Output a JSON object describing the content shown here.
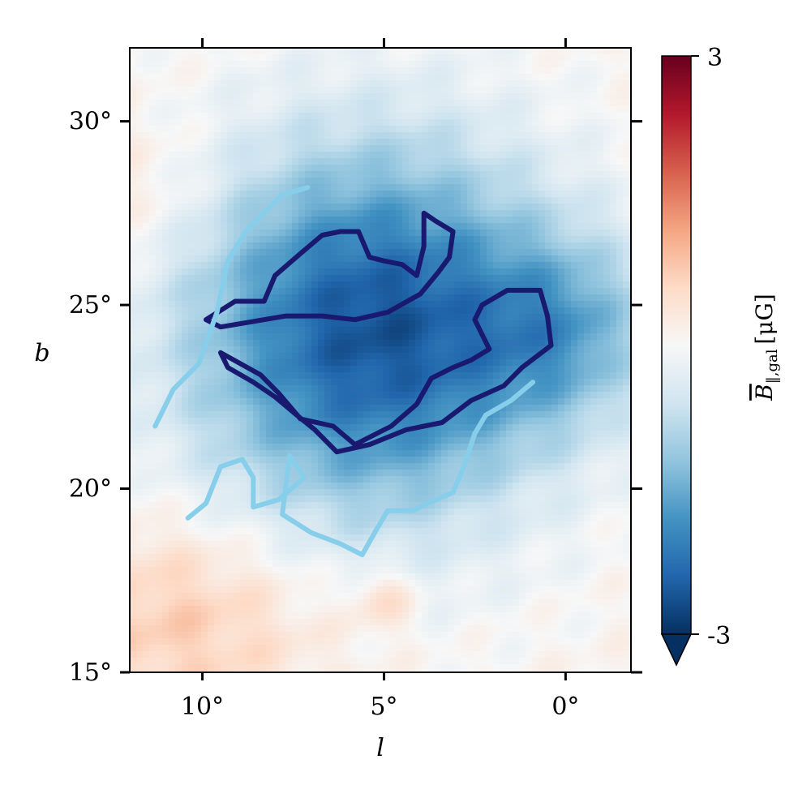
{
  "chart_data": {
    "type": "heatmap",
    "title": "",
    "xlabel": "l",
    "ylabel": "b",
    "x_axis_reversed": true,
    "xlim": [
      12.0,
      -1.8
    ],
    "ylim": [
      15.0,
      32.0
    ],
    "x_ticks": [
      {
        "value": 10,
        "label": "10°"
      },
      {
        "value": 5,
        "label": "5°"
      },
      {
        "value": 0,
        "label": "0°"
      }
    ],
    "y_ticks": [
      {
        "value": 15,
        "label": "15°"
      },
      {
        "value": 20,
        "label": "20°"
      },
      {
        "value": 25,
        "label": "25°"
      },
      {
        "value": 30,
        "label": "30°"
      }
    ],
    "colormap": "RdBu_r",
    "colorbar": {
      "label": "B̅‖,gal [μG]",
      "label_main": "B",
      "label_sub": "‖,gal",
      "label_unit": "[μG]",
      "min": -3,
      "max": 3,
      "min_label": "-3",
      "max_label": "3",
      "extend": "min"
    },
    "field_features": [
      {
        "kind": "negative_blob",
        "center_l": 5.3,
        "center_b": 24.3,
        "sigma_l": 3.6,
        "sigma_b": 3.6,
        "amplitude": -2.7
      },
      {
        "kind": "negative_blob",
        "center_l": 0.0,
        "center_b": 24.3,
        "sigma_l": 1.8,
        "sigma_b": 1.8,
        "amplitude": -1.1
      },
      {
        "kind": "positive_blob",
        "center_l": 10.5,
        "center_b": 16.5,
        "sigma_l": 2.8,
        "sigma_b": 2.0,
        "amplitude": 0.7
      },
      {
        "kind": "positive_blob",
        "center_l": 5.0,
        "center_b": 17.0,
        "sigma_l": 0.6,
        "sigma_b": 0.6,
        "amplitude": 0.6
      },
      {
        "kind": "positive_blob",
        "center_l": 11.5,
        "center_b": 28.0,
        "sigma_l": 1.5,
        "sigma_b": 1.5,
        "amplitude": 0.35
      }
    ],
    "contours": [
      {
        "name": "inner-contour-upper",
        "color": "#191970",
        "points": [
          [
            9.9,
            24.6
          ],
          [
            9.1,
            25.1
          ],
          [
            8.3,
            25.1
          ],
          [
            8.0,
            25.8
          ],
          [
            7.3,
            26.4
          ],
          [
            6.7,
            26.9
          ],
          [
            6.2,
            27.0
          ],
          [
            5.7,
            27.0
          ],
          [
            5.4,
            26.3
          ],
          [
            5.0,
            26.2
          ],
          [
            4.5,
            26.1
          ],
          [
            4.1,
            25.8
          ],
          [
            3.9,
            26.6
          ],
          [
            3.9,
            27.5
          ],
          [
            3.6,
            27.3
          ],
          [
            3.1,
            27.0
          ],
          [
            3.2,
            26.3
          ],
          [
            3.5,
            25.9
          ],
          [
            4.0,
            25.3
          ],
          [
            4.9,
            24.8
          ],
          [
            5.8,
            24.6
          ],
          [
            6.7,
            24.7
          ],
          [
            7.7,
            24.7
          ],
          [
            8.9,
            24.5
          ],
          [
            9.5,
            24.4
          ],
          [
            9.9,
            24.6
          ]
        ]
      },
      {
        "name": "inner-contour-lower",
        "color": "#191970",
        "points": [
          [
            9.5,
            23.7
          ],
          [
            8.4,
            23.1
          ],
          [
            7.9,
            22.6
          ],
          [
            7.3,
            21.9
          ],
          [
            6.4,
            21.7
          ],
          [
            5.8,
            21.2
          ],
          [
            4.8,
            21.7
          ],
          [
            4.1,
            22.3
          ],
          [
            3.7,
            23.0
          ],
          [
            3.1,
            23.3
          ],
          [
            2.6,
            23.5
          ],
          [
            2.1,
            23.8
          ],
          [
            2.5,
            24.6
          ],
          [
            2.3,
            25.0
          ],
          [
            1.6,
            25.4
          ],
          [
            0.7,
            25.4
          ],
          [
            0.5,
            24.7
          ],
          [
            0.4,
            23.9
          ],
          [
            1.2,
            23.3
          ],
          [
            1.7,
            22.8
          ],
          [
            2.6,
            22.4
          ],
          [
            3.4,
            21.8
          ],
          [
            3.9,
            21.7
          ],
          [
            4.4,
            21.6
          ],
          [
            5.4,
            21.2
          ],
          [
            6.3,
            21.0
          ],
          [
            6.9,
            21.6
          ],
          [
            7.4,
            22.0
          ],
          [
            8.0,
            22.5
          ],
          [
            8.6,
            22.9
          ],
          [
            9.3,
            23.3
          ],
          [
            9.5,
            23.7
          ]
        ]
      },
      {
        "name": "outer-contour-upper",
        "color": "#87ceeb",
        "points": [
          [
            11.3,
            21.7
          ],
          [
            10.8,
            22.7
          ],
          [
            10.1,
            23.4
          ],
          [
            9.6,
            24.8
          ],
          [
            9.3,
            26.2
          ],
          [
            8.8,
            27.0
          ],
          [
            8.3,
            27.5
          ],
          [
            7.8,
            28.0
          ],
          [
            7.1,
            28.2
          ]
        ]
      },
      {
        "name": "outer-contour-lower",
        "color": "#87ceeb",
        "points": [
          [
            10.4,
            19.2
          ],
          [
            9.9,
            19.6
          ],
          [
            9.5,
            20.6
          ],
          [
            8.9,
            20.8
          ],
          [
            8.6,
            20.3
          ],
          [
            8.6,
            19.5
          ],
          [
            7.9,
            19.7
          ],
          [
            7.2,
            20.3
          ],
          [
            7.6,
            20.9
          ],
          [
            7.8,
            19.3
          ],
          [
            7.0,
            18.8
          ],
          [
            6.2,
            18.5
          ],
          [
            5.6,
            18.2
          ],
          [
            5.2,
            18.9
          ],
          [
            4.9,
            19.4
          ],
          [
            4.2,
            19.4
          ],
          [
            3.8,
            19.6
          ],
          [
            3.1,
            19.9
          ],
          [
            2.8,
            20.6
          ],
          [
            2.5,
            21.5
          ],
          [
            2.2,
            22.0
          ],
          [
            1.5,
            22.4
          ],
          [
            0.9,
            22.9
          ]
        ]
      }
    ]
  }
}
